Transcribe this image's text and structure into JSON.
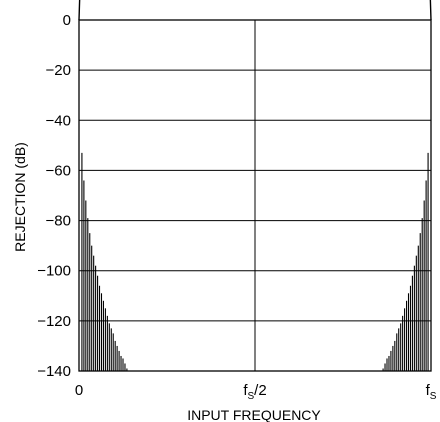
{
  "chart_data": {
    "type": "bar",
    "xlabel": "INPUT FREQUENCY",
    "ylabel": "REJECTION (dB)",
    "ylim": [
      -140,
      0
    ],
    "xlim": [
      0,
      1
    ],
    "y_ticks": [
      {
        "value": 0,
        "label": "0"
      },
      {
        "value": -20,
        "label": "−20"
      },
      {
        "value": -40,
        "label": "−40"
      },
      {
        "value": -60,
        "label": "−60"
      },
      {
        "value": -80,
        "label": "−80"
      },
      {
        "value": -100,
        "label": "−100"
      },
      {
        "value": -120,
        "label": "−120"
      },
      {
        "value": -140,
        "label": "−140"
      }
    ],
    "x_ticks": [
      {
        "value": 0,
        "main": "0",
        "sub": "",
        "tail": ""
      },
      {
        "value": 0.5,
        "main": "f",
        "sub": "S",
        "tail": "/2"
      },
      {
        "value": 1,
        "main": "f",
        "sub": "S",
        "tail": ""
      }
    ],
    "grid": true,
    "line_color": "#000000",
    "background": "#ffffff",
    "bars_left": {
      "x": [
        0.0083,
        0.0139,
        0.0194,
        0.025,
        0.0306,
        0.0361,
        0.0417,
        0.0472,
        0.0528,
        0.0583,
        0.0639,
        0.0694,
        0.075,
        0.0806,
        0.0861,
        0.0917,
        0.0972,
        0.1028,
        0.1083,
        0.1139,
        0.1194,
        0.125,
        0.1306,
        0.1361
      ],
      "values": [
        -53,
        -64,
        -72,
        -79,
        -85,
        -90,
        -94,
        -98,
        -102,
        -106,
        -109,
        -112,
        -115,
        -118,
        -121,
        -123,
        -125,
        -128,
        -130,
        -132,
        -134,
        -135,
        -137,
        -139
      ]
    },
    "bars_right": {
      "x": [
        0.8639,
        0.8694,
        0.875,
        0.8806,
        0.8861,
        0.8917,
        0.8972,
        0.9028,
        0.9083,
        0.9139,
        0.9194,
        0.925,
        0.9306,
        0.9361,
        0.9417,
        0.9472,
        0.9528,
        0.9583,
        0.9639,
        0.9694,
        0.975,
        0.9806,
        0.9861,
        0.9917
      ],
      "values": [
        -139,
        -137,
        -135,
        -134,
        -132,
        -130,
        -128,
        -125,
        -123,
        -121,
        -118,
        -115,
        -112,
        -109,
        -106,
        -102,
        -98,
        -94,
        -90,
        -85,
        -79,
        -72,
        -64,
        -53
      ]
    },
    "peaks": [
      {
        "x": 0,
        "value": 0
      },
      {
        "x": 1,
        "value": 0
      }
    ]
  }
}
